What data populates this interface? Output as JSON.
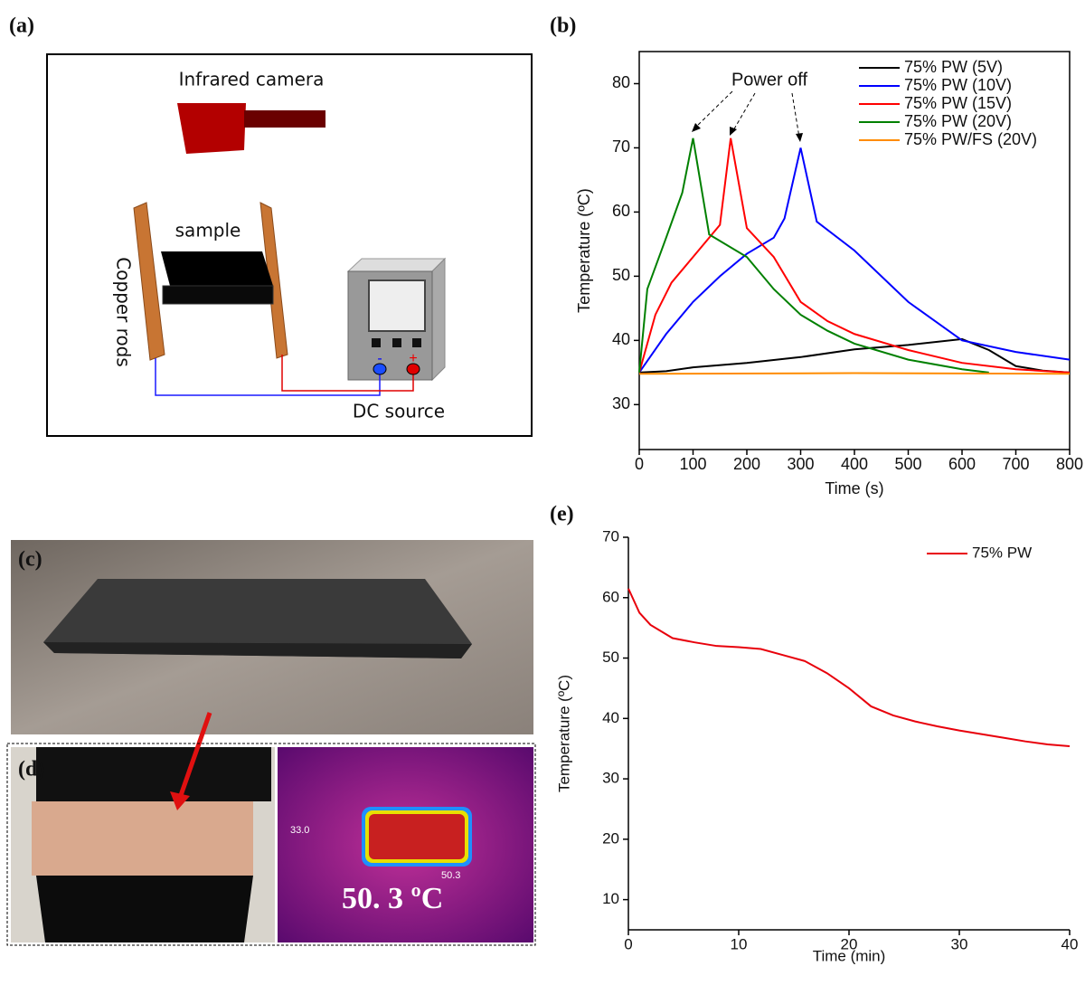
{
  "panel_labels": [
    "(a)",
    "(b)",
    "(c)",
    "(d)",
    "(e)"
  ],
  "setup_diagram": {
    "camera": "Infrared camera",
    "sample": "sample",
    "rods": "Copper rods",
    "source": "DC source",
    "minus": "-",
    "plus": "+"
  },
  "thermal_image": {
    "marker_left": "33.0",
    "marker_box": "50.3",
    "reading": "50. 3  ºC"
  },
  "chart_data": [
    {
      "type": "line",
      "xlabel": "Time (s)",
      "ylabel": "Temperature (ºC)",
      "annotations": [
        "Power off"
      ],
      "xlim": [
        0,
        800
      ],
      "xticks": [
        0,
        100,
        200,
        300,
        400,
        500,
        600,
        700,
        800
      ],
      "ylim": [
        23,
        85
      ],
      "yticks": [
        30,
        40,
        50,
        60,
        70,
        80
      ],
      "legend": "upper right",
      "frame": true,
      "series": [
        {
          "name": "75% PW (5V)",
          "color": "#000000",
          "x": [
            0,
            50,
            100,
            200,
            300,
            400,
            500,
            600,
            650,
            700,
            750,
            800
          ],
          "values": [
            35,
            35.2,
            35.8,
            36.5,
            37.4,
            38.6,
            39.3,
            40.2,
            38.5,
            36,
            35.3,
            35
          ]
        },
        {
          "name": "75% PW (10V)",
          "color": "#0000ff",
          "x": [
            0,
            50,
            100,
            150,
            200,
            250,
            270,
            300,
            330,
            400,
            500,
            550,
            600,
            700,
            800
          ],
          "values": [
            35,
            41,
            46,
            50,
            53.5,
            56,
            59,
            70,
            58.5,
            54,
            46,
            43,
            40,
            38.2,
            37
          ]
        },
        {
          "name": "75% PW (15V)",
          "color": "#ff0000",
          "x": [
            0,
            30,
            60,
            100,
            150,
            170,
            200,
            250,
            300,
            350,
            400,
            500,
            600,
            700,
            800
          ],
          "values": [
            35,
            44,
            49,
            53,
            58,
            71.5,
            57.5,
            53,
            46,
            43,
            41,
            38.5,
            36.5,
            35.5,
            35
          ]
        },
        {
          "name": "75% PW (20V)",
          "color": "#008000",
          "x": [
            0,
            15,
            50,
            80,
            100,
            130,
            200,
            250,
            300,
            350,
            400,
            500,
            600,
            650
          ],
          "values": [
            35,
            48,
            56,
            63,
            71.5,
            56.5,
            53,
            48,
            44,
            41.5,
            39.5,
            37,
            35.5,
            35
          ]
        },
        {
          "name": "75% PW/FS (20V)",
          "color": "#ff8c00",
          "x": [
            0,
            400,
            800
          ],
          "values": [
            34.8,
            34.9,
            34.8
          ]
        }
      ]
    },
    {
      "type": "line",
      "xlabel": "Time (min)",
      "ylabel": "Temperature (ºC)",
      "xlim": [
        0,
        40
      ],
      "xticks": [
        0,
        10,
        20,
        30,
        40
      ],
      "ylim": [
        5,
        70
      ],
      "yticks": [
        10,
        20,
        30,
        40,
        50,
        60,
        70
      ],
      "legend": "upper right",
      "frame": false,
      "series": [
        {
          "name": "75% PW",
          "color": "#e8000b",
          "x": [
            0,
            1,
            2,
            4,
            6,
            8,
            10,
            12,
            14,
            16,
            18,
            20,
            22,
            24,
            26,
            28,
            30,
            32,
            34,
            36,
            38,
            40
          ],
          "values": [
            61.5,
            57.5,
            55.5,
            53.3,
            52.6,
            52,
            51.8,
            51.5,
            50.5,
            49.5,
            47.5,
            45,
            42,
            40.5,
            39.5,
            38.7,
            38,
            37.4,
            36.8,
            36.2,
            35.7,
            35.4
          ]
        }
      ]
    }
  ]
}
